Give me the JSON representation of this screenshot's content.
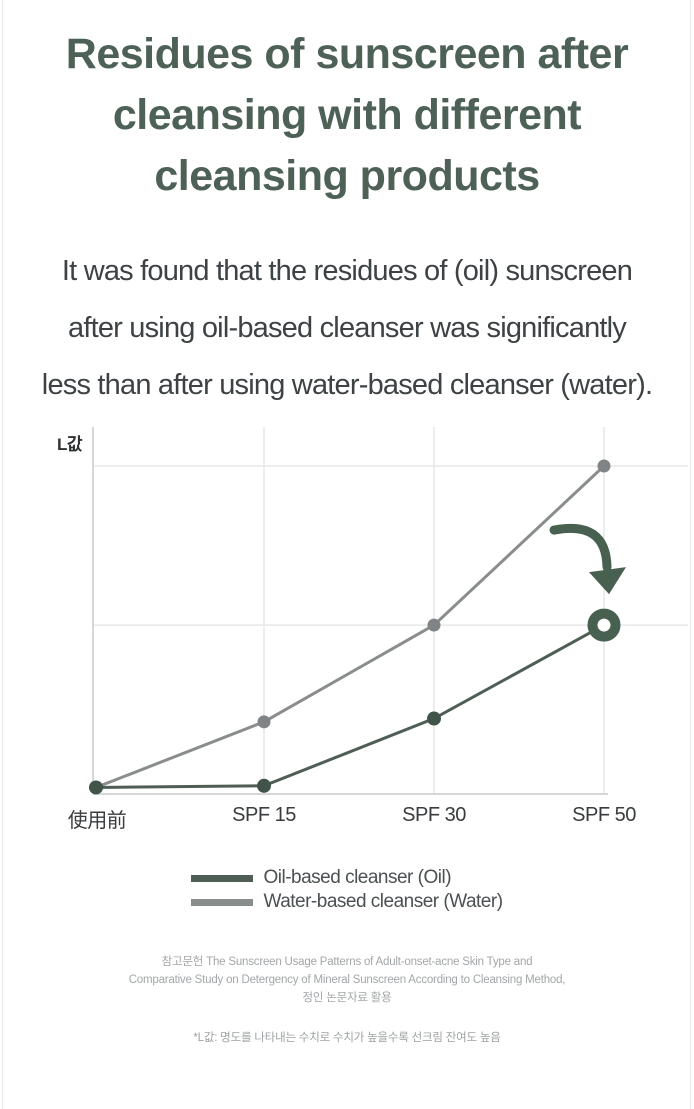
{
  "title": "Residues of sunscreen after\ncleansing with different\ncleansing products",
  "subtitle": "It was found that the residues of (oil) sunscreen\nafter using oil-based cleanser was significantly\nless than after using water-based cleanser (water).",
  "colors": {
    "title_green": "#4d6156",
    "body_text": "#3d4245",
    "oil_line": "#4f5e55",
    "oil_point": "#41544a",
    "water_line": "#898d8c",
    "water_point": "#808486",
    "marker_ring": "#47604f",
    "arrow_green": "#47604f",
    "gridline": "#e7e7e7",
    "axis_line": "#c9cbcb",
    "footer_text": "#a2a6a8"
  },
  "chart_data": {
    "type": "line",
    "title": "",
    "xlabel": "",
    "ylabel": "L값",
    "categories": [
      "使用前",
      "SPF 15",
      "SPF 30",
      "SPF 50"
    ],
    "series": [
      {
        "name": "Oil-based cleanser (Oil)",
        "color": "#4f5e55",
        "point_color": "#41544a",
        "values": [
          2,
          2.5,
          23,
          51.5
        ]
      },
      {
        "name": "Water-based cleanser (Water)",
        "color": "#898d8c",
        "point_color": "#808486",
        "values": [
          2,
          22,
          51.5,
          100
        ]
      }
    ],
    "ylim": [
      0,
      110
    ],
    "units": "relative L value (no numeric tick labels shown)",
    "grid": true,
    "gridlines": {
      "horizontal_values": [
        51.5,
        100
      ],
      "vertical_at_category_indices": [
        1,
        2,
        3
      ]
    },
    "legend_position": "bottom",
    "annotations": [
      {
        "type": "curved-arrow-with-ring",
        "target_series": 0,
        "target_category": "SPF 50",
        "meaning": "highlights low residue of oil-based cleanser at SPF 50"
      }
    ]
  },
  "footer": {
    "reference": "참고문헌 The Sunscreen Usage Patterns of Adult-onset-acne Skin Type and\nComparative Study on Detergency of Mineral Sunscreen According to Cleansing Method,\n정인 논문자료 활용",
    "footnote": "*L값: 명도를 나타내는 수치로 수치가 높을수록 선크림 잔여도 높음"
  }
}
